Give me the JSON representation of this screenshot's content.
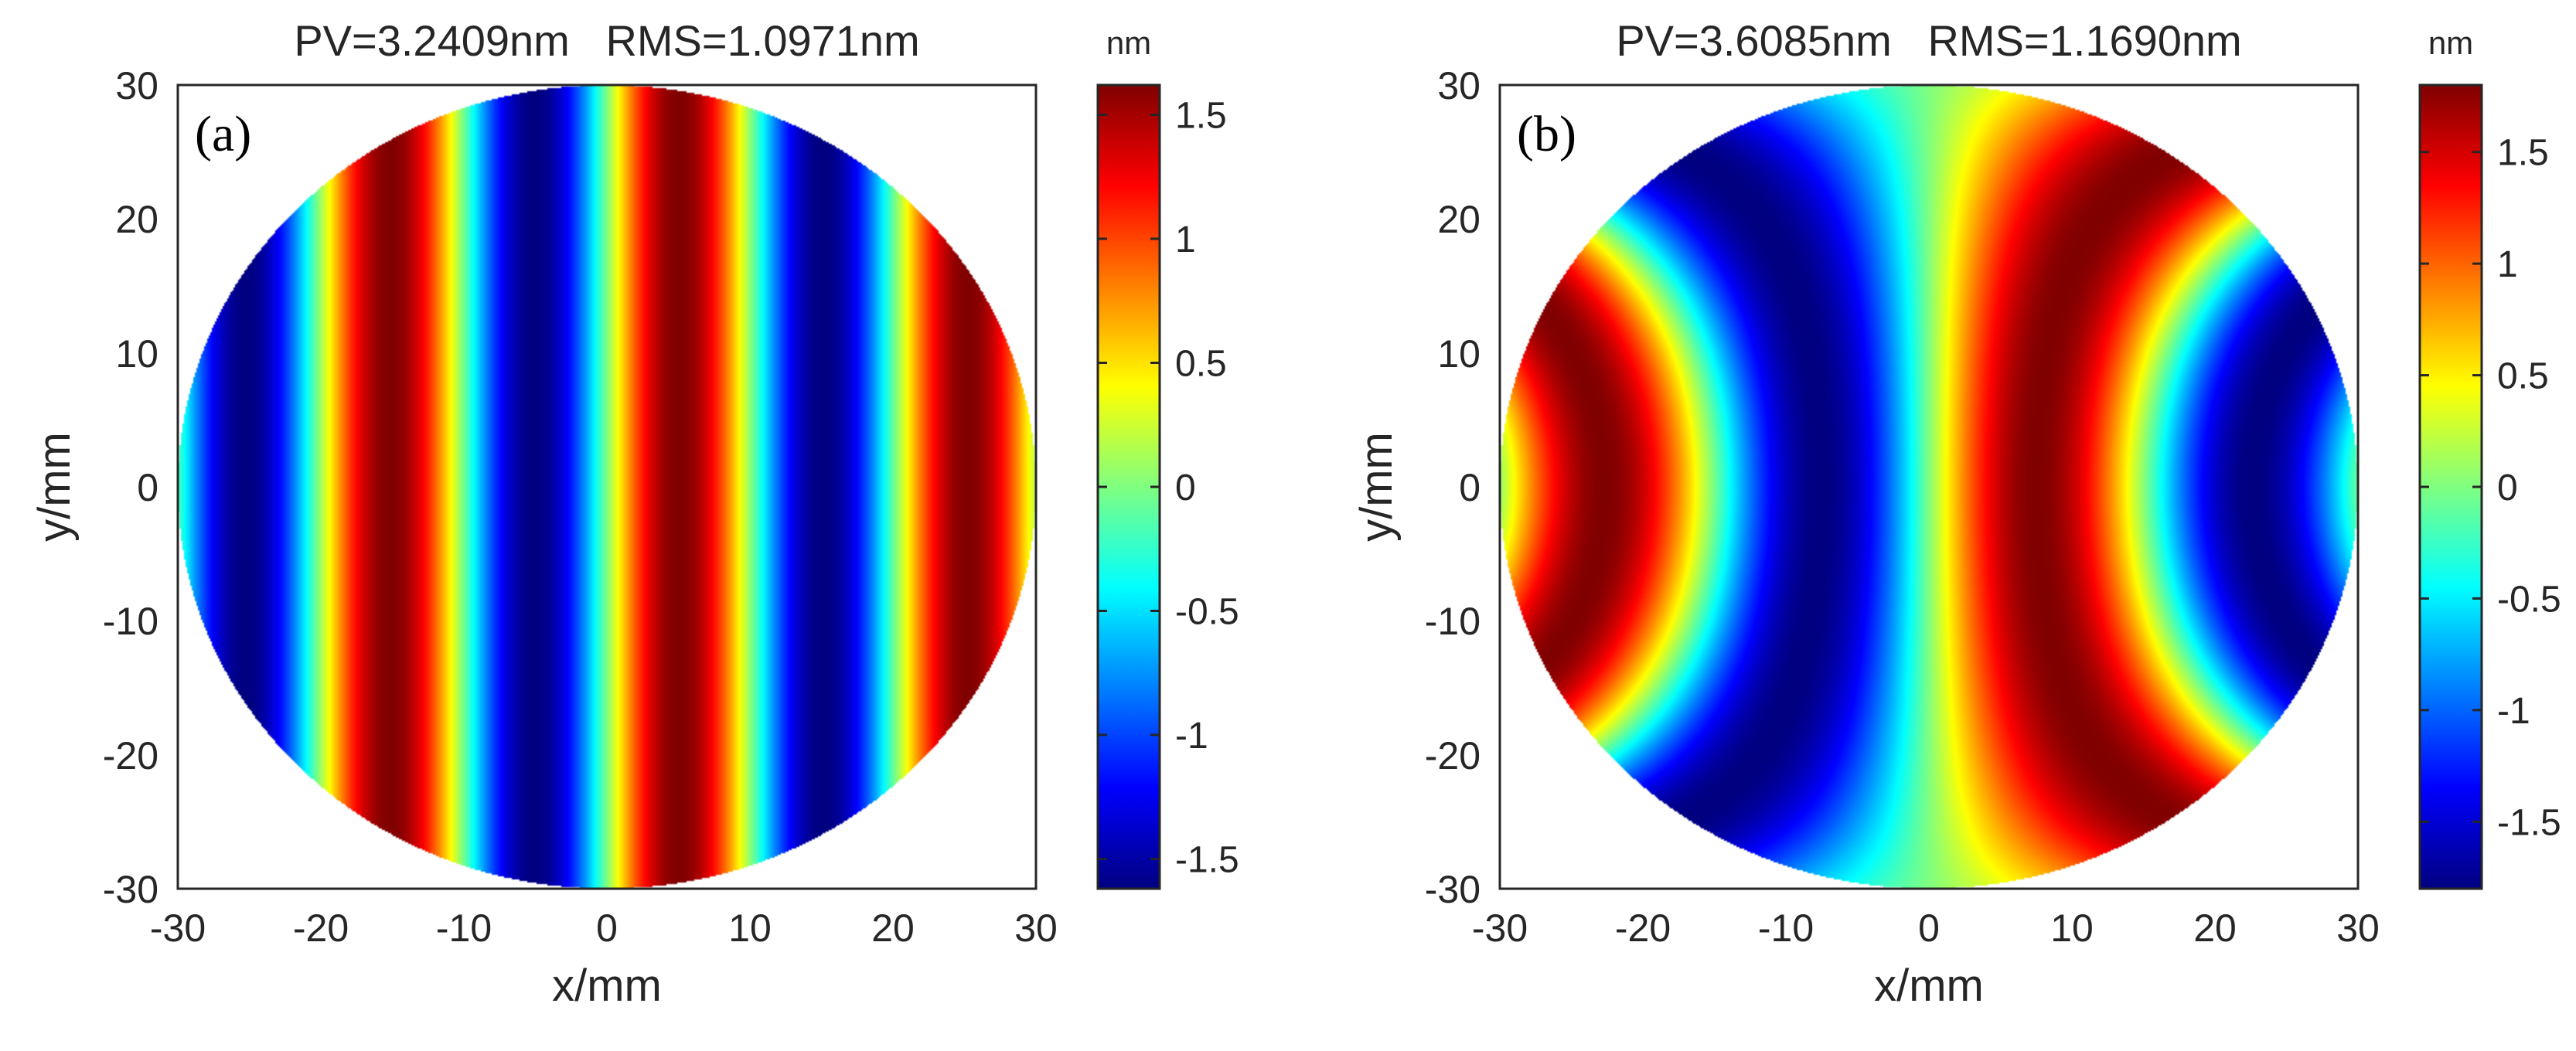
{
  "chart_data": [
    {
      "id": "a",
      "type": "heatmap",
      "panel_label": "(a)",
      "title": "PV=3.2409nm   RMS=1.0971nm",
      "xlabel": "x/mm",
      "ylabel": "y/mm",
      "xlim": [
        -30,
        30
      ],
      "ylim": [
        -30,
        30
      ],
      "xticks": [
        -30,
        -20,
        -10,
        0,
        10,
        20,
        30
      ],
      "yticks": [
        -30,
        -20,
        -10,
        0,
        10,
        20,
        30
      ],
      "aperture": "circle",
      "aperture_radius": 30,
      "fringe_period": 20.2,
      "fringe_phase": 0.0,
      "fringe_curvature": 0.0,
      "colorbar": {
        "unit": "nm",
        "colormap": "jet",
        "clim": [
          -1.62,
          1.62
        ],
        "ticks": [
          -1.5,
          -1,
          -0.5,
          0,
          0.5,
          1,
          1.5
        ],
        "tick_labels": [
          "-1.5",
          "-1",
          "-0.5",
          "0",
          "0.5",
          "1",
          "1.5"
        ]
      }
    },
    {
      "id": "b",
      "type": "heatmap",
      "panel_label": "(b)",
      "title": "PV=3.6085nm   RMS=1.1690nm",
      "xlabel": "x/mm",
      "ylabel": "y/mm",
      "xlim": [
        -30,
        30
      ],
      "ylim": [
        -30,
        30
      ],
      "xticks": [
        -30,
        -20,
        -10,
        0,
        10,
        20,
        30
      ],
      "yticks": [
        -30,
        -20,
        -10,
        0,
        10,
        20,
        30
      ],
      "aperture": "circle",
      "aperture_radius": 30,
      "fringe_period": 30.2,
      "fringe_phase": 0.0,
      "fringe_curvature": 0.0009,
      "colorbar": {
        "unit": "nm",
        "colormap": "jet",
        "clim": [
          -1.8,
          1.8
        ],
        "ticks": [
          -1.5,
          -1,
          -0.5,
          0,
          0.5,
          1,
          1.5
        ],
        "tick_labels": [
          "-1.5",
          "-1",
          "-0.5",
          "0",
          "0.5",
          "1",
          "1.5"
        ]
      }
    }
  ]
}
